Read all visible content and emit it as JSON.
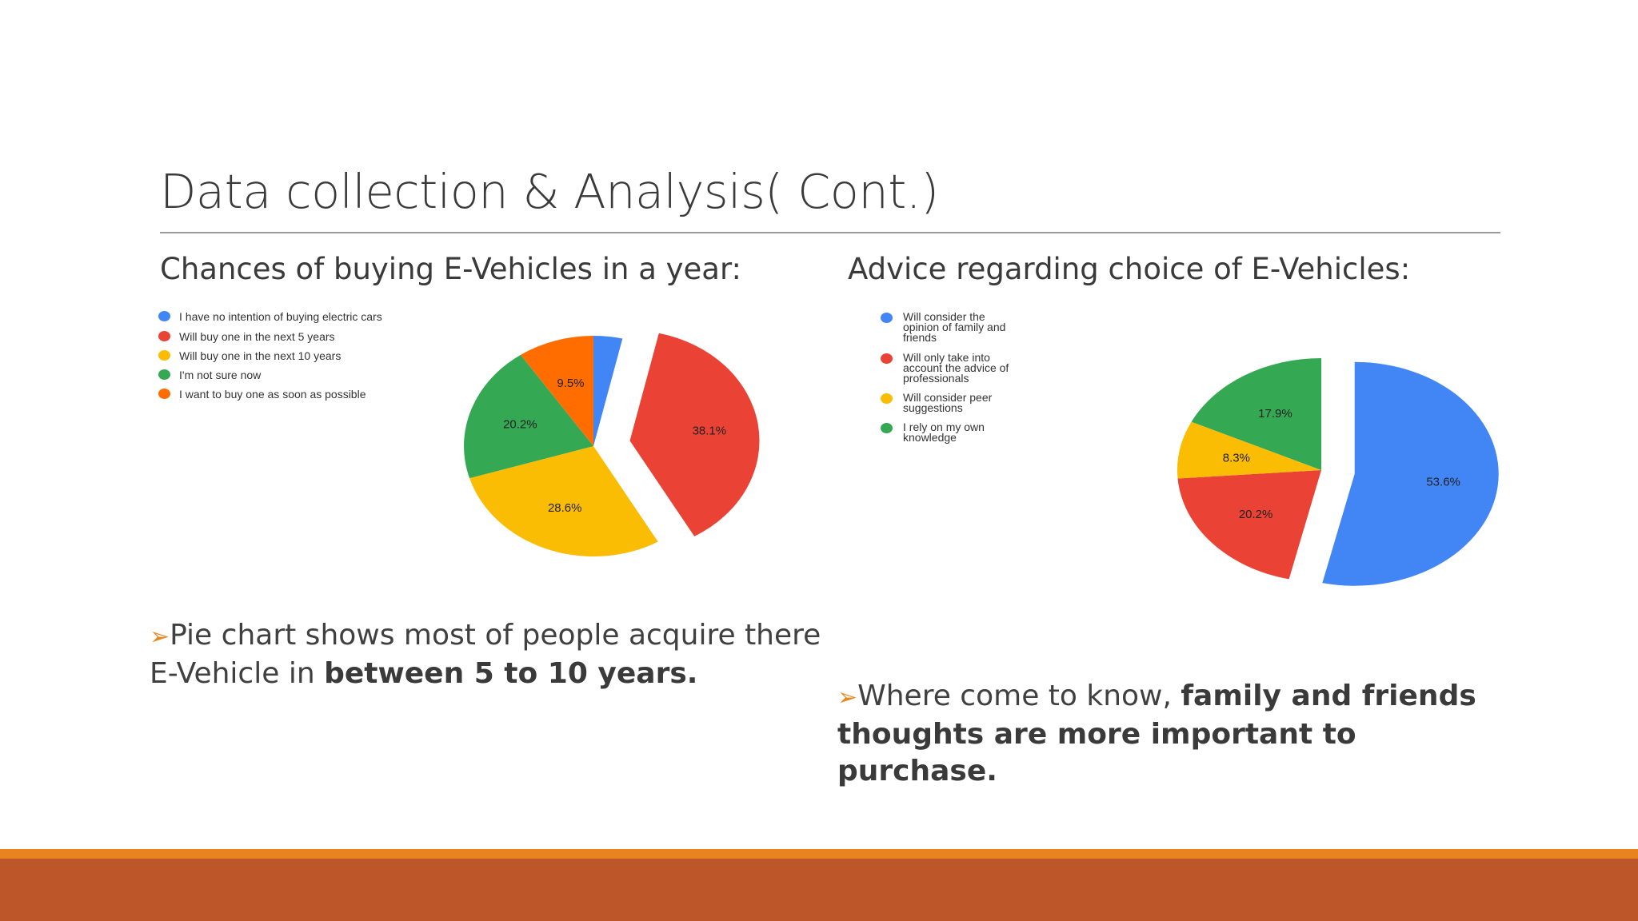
{
  "slide": {
    "title": "Data collection & Analysis( Cont.)"
  },
  "left": {
    "subtitle": "Chances of buying E-Vehicles in a year:",
    "bullet_plain": "Pie  chart shows most of people acquire there E-Vehicle in ",
    "bullet_bold": "between 5 to 10 years."
  },
  "right": {
    "subtitle": "Advice regarding choice of E-Vehicles:",
    "bullet_plain": "Where come to know, ",
    "bullet_bold": "family and friends thoughts are more important to purchase."
  },
  "colors": {
    "blue": "#4285f4",
    "red": "#ea4335",
    "yellow": "#fbbc04",
    "green": "#34a853",
    "orange": "#ff6d01",
    "footer_orange": "#e8831f",
    "footer_rust": "#bd5729",
    "arrow": "#e8871e"
  },
  "chart_data": [
    {
      "type": "pie",
      "series": [
        {
          "name": "I have no intention of buying electric cars",
          "value": 3.6,
          "color": "#4285f4",
          "label": ""
        },
        {
          "name": "Will buy one in the next 5 years",
          "value": 38.1,
          "color": "#ea4335",
          "label": "38.1%",
          "exploded": true
        },
        {
          "name": "Will buy one in the next 10 years",
          "value": 28.6,
          "color": "#fbbc04",
          "label": "28.6%"
        },
        {
          "name": "I'm not sure now",
          "value": 20.2,
          "color": "#34a853",
          "label": "20.2%"
        },
        {
          "name": "I want to buy one as soon as possible",
          "value": 9.5,
          "color": "#ff6d01",
          "label": "9.5%"
        }
      ],
      "legend_position": "left"
    },
    {
      "type": "pie",
      "series": [
        {
          "name": "Will consider the opinion of family and friends",
          "value": 53.6,
          "color": "#4285f4",
          "label": "53.6%",
          "exploded": true
        },
        {
          "name": "Will only take into account the advice of professionals",
          "value": 20.2,
          "color": "#ea4335",
          "label": "20.2%"
        },
        {
          "name": "Will consider peer suggestions",
          "value": 8.3,
          "color": "#fbbc04",
          "label": "8.3%"
        },
        {
          "name": "I rely on my own knowledge",
          "value": 17.9,
          "color": "#34a853",
          "label": "17.9%"
        }
      ],
      "legend_position": "left"
    }
  ]
}
